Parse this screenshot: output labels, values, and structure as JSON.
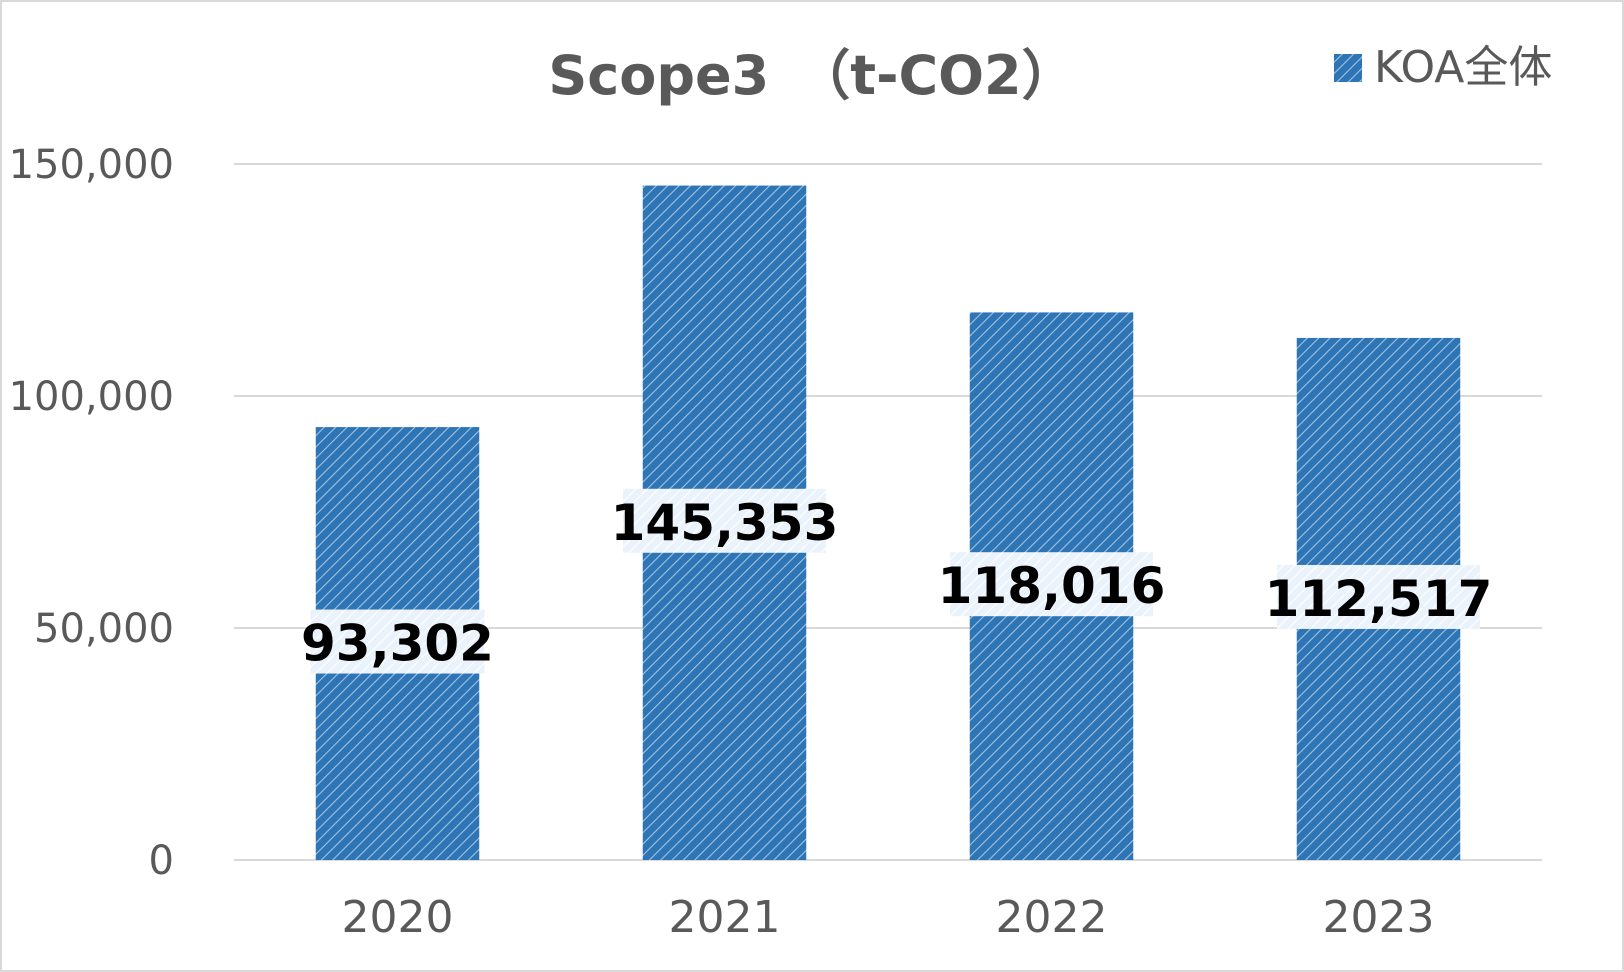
{
  "chart_data": {
    "type": "bar",
    "title": "Scope3　（t-CO2）",
    "categories": [
      "2020",
      "2021",
      "2022",
      "2023"
    ],
    "series": [
      {
        "name": "KOA全体",
        "values": [
          93302,
          145353,
          118016,
          112517
        ],
        "labels": [
          "93,302",
          "145,353",
          "118,016",
          "112,517"
        ]
      }
    ],
    "ylim": [
      0,
      150000
    ],
    "yticks": [
      0,
      50000,
      100000,
      150000
    ],
    "ytick_labels": [
      "0",
      "50,000",
      "100,000",
      "150,000"
    ],
    "grid": true,
    "legend": "top-right",
    "colors": {
      "bar": "#2e75b6",
      "bar_hatch": "#ffffff",
      "grid": "#d9d9d9",
      "text": "#595959",
      "data_label": "#000000"
    }
  }
}
